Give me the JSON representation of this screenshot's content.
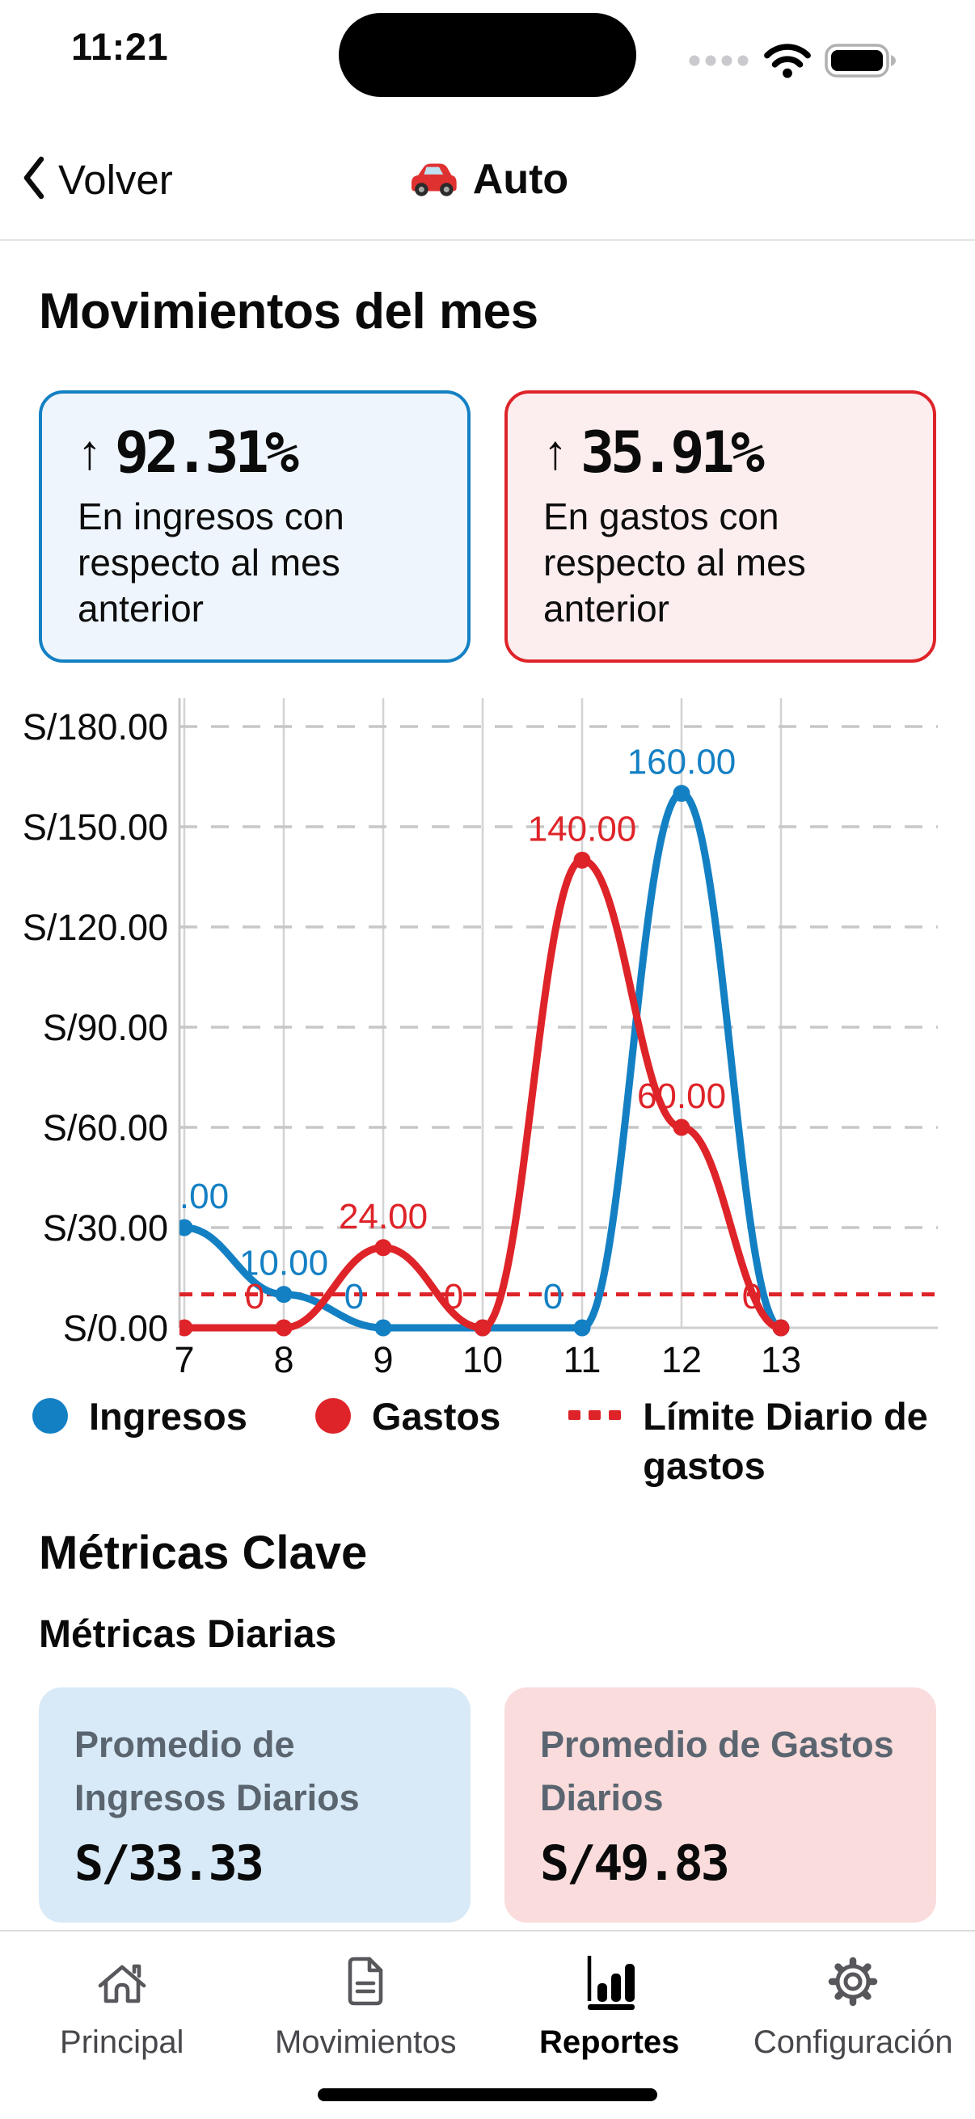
{
  "status_bar": {
    "time": "11:21",
    "cellular_icon": "cellular-dots",
    "wifi_icon": "wifi",
    "battery_icon": "battery-full"
  },
  "nav": {
    "back": "Volver",
    "title": "Auto",
    "title_icon": "red-car-emoji"
  },
  "movimientos": {
    "heading": "Movimientos del mes",
    "cards": [
      {
        "arrow": "↑",
        "percent": "92.31%",
        "description": "En ingresos con respecto al mes anterior",
        "accent": "#1480C4",
        "bg": "#EEF5FC"
      },
      {
        "arrow": "↑",
        "percent": "35.91%",
        "description": "En gastos con respecto al mes anterior",
        "accent": "#DE2429",
        "bg": "#FCEDEE"
      }
    ]
  },
  "chart_data": {
    "type": "line",
    "x": [
      7,
      8,
      9,
      10,
      11,
      12,
      13
    ],
    "series": [
      {
        "name": "Ingresos",
        "color": "#1480C4",
        "values": [
          30,
          10,
          0,
          0,
          0,
          160,
          0
        ]
      },
      {
        "name": "Gastos",
        "color": "#DE2429",
        "values": [
          0,
          0,
          24,
          0,
          140,
          60,
          0
        ]
      }
    ],
    "limit_line": {
      "name": "Límite Diario de gastos",
      "value": 10,
      "color": "#DE2429",
      "style": "dashed"
    },
    "y_ticks": [
      0,
      30,
      60,
      90,
      120,
      150,
      180
    ],
    "y_tick_prefix": "S/",
    "ylim": [
      0,
      190
    ],
    "grid": true,
    "smooth": true,
    "point_labels": "value shown above each point, zeros shown as 0, first label clipped at axis",
    "legend_position": "bottom"
  },
  "legend": {
    "items": [
      {
        "label": "Ingresos",
        "color": "#1480C4",
        "marker": "dot"
      },
      {
        "label": "Gastos",
        "color": "#DE2429",
        "marker": "dot"
      },
      {
        "label": "Límite Diario de gastos",
        "color": "#DE2429",
        "marker": "dashes"
      }
    ]
  },
  "metricas": {
    "heading": "Métricas Clave",
    "subheading": "Métricas Diarias",
    "cards": [
      {
        "title": "Promedio de Ingresos Diarios",
        "value": "S/33.33",
        "bg": "#D8EAF8"
      },
      {
        "title": "Promedio de Gastos Diarios",
        "value": "S/49.83",
        "bg": "#FADCDC"
      }
    ]
  },
  "tab_bar": {
    "items": [
      {
        "label": "Principal",
        "icon": "home-icon",
        "active": false
      },
      {
        "label": "Movimientos",
        "icon": "document-icon",
        "active": false
      },
      {
        "label": "Reportes",
        "icon": "bar-chart-icon",
        "active": true
      },
      {
        "label": "Configuración",
        "icon": "gear-icon",
        "active": false
      }
    ]
  }
}
